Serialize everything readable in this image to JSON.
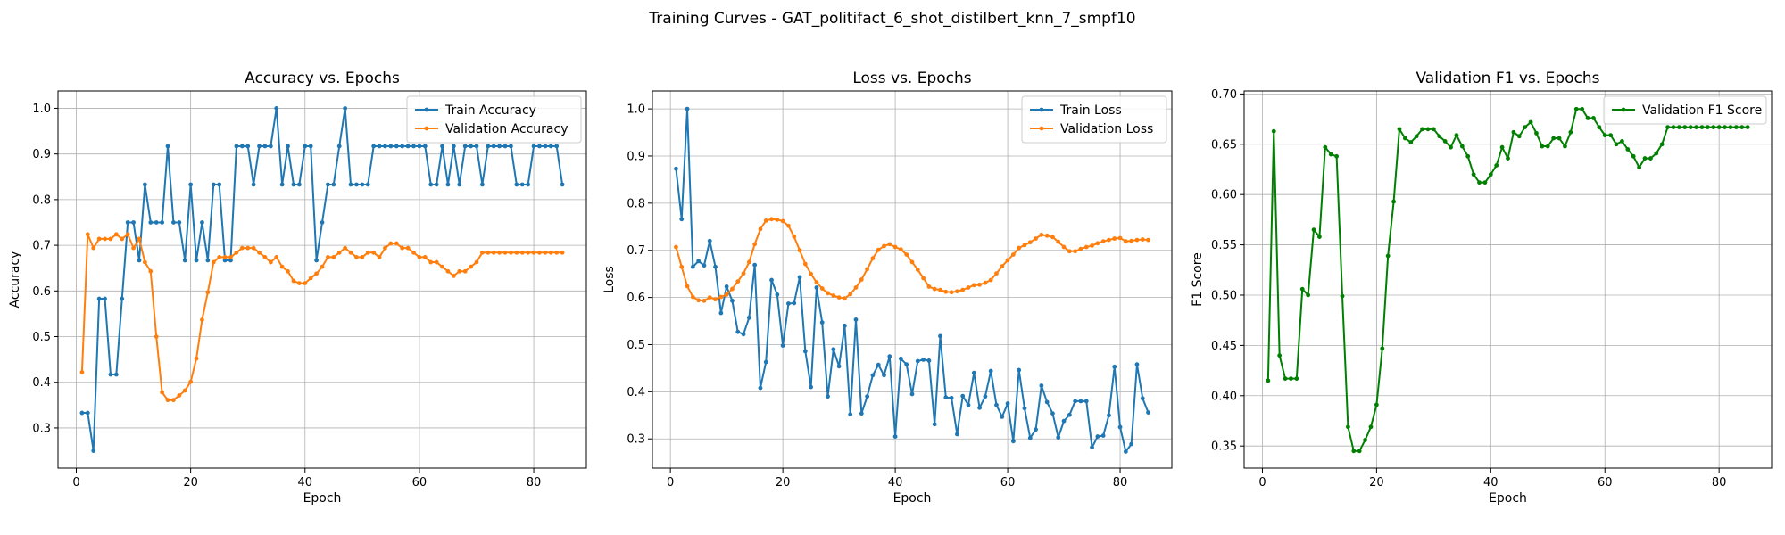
{
  "suptitle": "Training Curves - GAT_politifact_6_shot_distilbert_knn_7_smpf10",
  "chart_data": [
    {
      "type": "line",
      "title": "Accuracy vs. Epochs",
      "xlabel": "Epoch",
      "ylabel": "Accuracy",
      "xlim": [
        -3.2,
        89.2
      ],
      "ylim": [
        0.212,
        1.038
      ],
      "xticks": [
        0,
        20,
        40,
        60,
        80
      ],
      "yticks": [
        0.3,
        0.4,
        0.5,
        0.6,
        0.7,
        0.8,
        0.9,
        1.0
      ],
      "ytick_labels": [
        "0.3",
        "0.4",
        "0.5",
        "0.6",
        "0.7",
        "0.8",
        "0.9",
        "1.0"
      ],
      "grid": true,
      "legend_position": "upper right",
      "x": [
        1,
        2,
        3,
        4,
        5,
        6,
        7,
        8,
        9,
        10,
        11,
        12,
        13,
        14,
        15,
        16,
        17,
        18,
        19,
        20,
        21,
        22,
        23,
        24,
        25,
        26,
        27,
        28,
        29,
        30,
        31,
        32,
        33,
        34,
        35,
        36,
        37,
        38,
        39,
        40,
        41,
        42,
        43,
        44,
        45,
        46,
        47,
        48,
        49,
        50,
        51,
        52,
        53,
        54,
        55,
        56,
        57,
        58,
        59,
        60,
        61,
        62,
        63,
        64,
        65,
        66,
        67,
        68,
        69,
        70,
        71,
        72,
        73,
        74,
        75,
        76,
        77,
        78,
        79,
        80,
        81,
        82,
        83,
        84,
        85
      ],
      "series": [
        {
          "name": "Train Accuracy",
          "color": "#1f77b4",
          "values": [
            0.333,
            0.333,
            0.25,
            0.583,
            0.583,
            0.417,
            0.417,
            0.583,
            0.75,
            0.75,
            0.667,
            0.833,
            0.75,
            0.75,
            0.75,
            0.917,
            0.75,
            0.75,
            0.667,
            0.833,
            0.667,
            0.75,
            0.667,
            0.833,
            0.833,
            0.667,
            0.667,
            0.917,
            0.917,
            0.917,
            0.833,
            0.917,
            0.917,
            0.917,
            1.0,
            0.833,
            0.917,
            0.833,
            0.833,
            0.917,
            0.917,
            0.667,
            0.75,
            0.833,
            0.833,
            0.917,
            1.0,
            0.833,
            0.833,
            0.833,
            0.833,
            0.917,
            0.917,
            0.917,
            0.917,
            0.917,
            0.917,
            0.917,
            0.917,
            0.917,
            0.917,
            0.833,
            0.833,
            0.917,
            0.833,
            0.917,
            0.833,
            0.917,
            0.917,
            0.917,
            0.833,
            0.917,
            0.917,
            0.917,
            0.917,
            0.917,
            0.833,
            0.833,
            0.833,
            0.917,
            0.917,
            0.917,
            0.917,
            0.917,
            0.833
          ]
        },
        {
          "name": "Validation Accuracy",
          "color": "#ff7f0e",
          "values": [
            0.422,
            0.724,
            0.694,
            0.714,
            0.714,
            0.714,
            0.724,
            0.714,
            0.724,
            0.694,
            0.714,
            0.663,
            0.643,
            0.5,
            0.378,
            0.361,
            0.361,
            0.371,
            0.382,
            0.401,
            0.452,
            0.537,
            0.597,
            0.663,
            0.674,
            0.674,
            0.674,
            0.684,
            0.694,
            0.694,
            0.694,
            0.684,
            0.674,
            0.663,
            0.674,
            0.653,
            0.643,
            0.622,
            0.617,
            0.617,
            0.628,
            0.638,
            0.653,
            0.674,
            0.674,
            0.684,
            0.694,
            0.684,
            0.674,
            0.674,
            0.684,
            0.684,
            0.674,
            0.694,
            0.704,
            0.704,
            0.694,
            0.694,
            0.684,
            0.674,
            0.674,
            0.663,
            0.663,
            0.653,
            0.643,
            0.633,
            0.643,
            0.643,
            0.653,
            0.663,
            0.684,
            0.684,
            0.684,
            0.684,
            0.684,
            0.684,
            0.684,
            0.684,
            0.684,
            0.684,
            0.684,
            0.684,
            0.684,
            0.684,
            0.684
          ]
        }
      ]
    },
    {
      "type": "line",
      "title": "Loss vs. Epochs",
      "xlabel": "Epoch",
      "ylabel": "Loss",
      "xlim": [
        -3.2,
        89.2
      ],
      "ylim": [
        0.238,
        1.038
      ],
      "xticks": [
        0,
        20,
        40,
        60,
        80
      ],
      "yticks": [
        0.3,
        0.4,
        0.5,
        0.6,
        0.7,
        0.8,
        0.9,
        1.0
      ],
      "ytick_labels": [
        "0.3",
        "0.4",
        "0.5",
        "0.6",
        "0.7",
        "0.8",
        "0.9",
        "1.0"
      ],
      "grid": true,
      "legend_position": "upper right",
      "x": [
        1,
        2,
        3,
        4,
        5,
        6,
        7,
        8,
        9,
        10,
        11,
        12,
        13,
        14,
        15,
        16,
        17,
        18,
        19,
        20,
        21,
        22,
        23,
        24,
        25,
        26,
        27,
        28,
        29,
        30,
        31,
        32,
        33,
        34,
        35,
        36,
        37,
        38,
        39,
        40,
        41,
        42,
        43,
        44,
        45,
        46,
        47,
        48,
        49,
        50,
        51,
        52,
        53,
        54,
        55,
        56,
        57,
        58,
        59,
        60,
        61,
        62,
        63,
        64,
        65,
        66,
        67,
        68,
        69,
        70,
        71,
        72,
        73,
        74,
        75,
        76,
        77,
        78,
        79,
        80,
        81,
        82,
        83,
        84,
        85
      ],
      "series": [
        {
          "name": "Train Loss",
          "color": "#1f77b4",
          "values": [
            0.873,
            0.766,
            1.0,
            0.665,
            0.677,
            0.668,
            0.72,
            0.665,
            0.567,
            0.623,
            0.593,
            0.527,
            0.522,
            0.557,
            0.669,
            0.408,
            0.463,
            0.637,
            0.606,
            0.498,
            0.587,
            0.588,
            0.643,
            0.486,
            0.41,
            0.621,
            0.547,
            0.39,
            0.49,
            0.454,
            0.54,
            0.352,
            0.553,
            0.354,
            0.39,
            0.435,
            0.457,
            0.435,
            0.475,
            0.305,
            0.47,
            0.458,
            0.395,
            0.465,
            0.468,
            0.466,
            0.331,
            0.518,
            0.388,
            0.387,
            0.31,
            0.391,
            0.372,
            0.44,
            0.366,
            0.39,
            0.444,
            0.372,
            0.347,
            0.375,
            0.295,
            0.446,
            0.365,
            0.302,
            0.32,
            0.413,
            0.378,
            0.354,
            0.303,
            0.338,
            0.351,
            0.38,
            0.38,
            0.38,
            0.282,
            0.305,
            0.307,
            0.35,
            0.453,
            0.325,
            0.273,
            0.289,
            0.458,
            0.386,
            0.356
          ]
        },
        {
          "name": "Validation Loss",
          "color": "#ff7f0e",
          "values": [
            0.707,
            0.665,
            0.624,
            0.601,
            0.594,
            0.593,
            0.6,
            0.596,
            0.601,
            0.606,
            0.618,
            0.634,
            0.651,
            0.675,
            0.713,
            0.745,
            0.763,
            0.766,
            0.765,
            0.762,
            0.752,
            0.729,
            0.7,
            0.671,
            0.65,
            0.632,
            0.619,
            0.609,
            0.604,
            0.6,
            0.598,
            0.607,
            0.621,
            0.638,
            0.66,
            0.683,
            0.701,
            0.709,
            0.713,
            0.707,
            0.702,
            0.691,
            0.675,
            0.659,
            0.641,
            0.623,
            0.618,
            0.616,
            0.612,
            0.611,
            0.613,
            0.616,
            0.621,
            0.626,
            0.627,
            0.631,
            0.637,
            0.651,
            0.666,
            0.679,
            0.691,
            0.705,
            0.711,
            0.717,
            0.725,
            0.733,
            0.731,
            0.728,
            0.718,
            0.707,
            0.698,
            0.698,
            0.703,
            0.707,
            0.71,
            0.715,
            0.719,
            0.722,
            0.725,
            0.726,
            0.719,
            0.72,
            0.722,
            0.723,
            0.722
          ]
        }
      ]
    },
    {
      "type": "line",
      "title": "Validation F1 vs. Epochs",
      "xlabel": "Epoch",
      "ylabel": "F1 Score",
      "xlim": [
        -3.2,
        89.2
      ],
      "ylim": [
        0.328,
        0.703
      ],
      "xticks": [
        0,
        20,
        40,
        60,
        80
      ],
      "yticks": [
        0.35,
        0.4,
        0.45,
        0.5,
        0.55,
        0.6,
        0.65,
        0.7
      ],
      "ytick_labels": [
        "0.35",
        "0.40",
        "0.45",
        "0.50",
        "0.55",
        "0.60",
        "0.65",
        "0.70"
      ],
      "grid": true,
      "legend_position": "upper right",
      "x": [
        1,
        2,
        3,
        4,
        5,
        6,
        7,
        8,
        9,
        10,
        11,
        12,
        13,
        14,
        15,
        16,
        17,
        18,
        19,
        20,
        21,
        22,
        23,
        24,
        25,
        26,
        27,
        28,
        29,
        30,
        31,
        32,
        33,
        34,
        35,
        36,
        37,
        38,
        39,
        40,
        41,
        42,
        43,
        44,
        45,
        46,
        47,
        48,
        49,
        50,
        51,
        52,
        53,
        54,
        55,
        56,
        57,
        58,
        59,
        60,
        61,
        62,
        63,
        64,
        65,
        66,
        67,
        68,
        69,
        70,
        71,
        72,
        73,
        74,
        75,
        76,
        77,
        78,
        79,
        80,
        81,
        82,
        83,
        84,
        85
      ],
      "series": [
        {
          "name": "Validation F1 Score",
          "color": "#008000",
          "values": [
            0.415,
            0.663,
            0.44,
            0.417,
            0.417,
            0.417,
            0.506,
            0.5,
            0.565,
            0.558,
            0.647,
            0.64,
            0.638,
            0.499,
            0.369,
            0.345,
            0.345,
            0.356,
            0.369,
            0.391,
            0.447,
            0.539,
            0.593,
            0.665,
            0.656,
            0.652,
            0.658,
            0.665,
            0.665,
            0.665,
            0.658,
            0.653,
            0.647,
            0.659,
            0.648,
            0.638,
            0.62,
            0.612,
            0.612,
            0.62,
            0.629,
            0.647,
            0.636,
            0.662,
            0.658,
            0.667,
            0.672,
            0.661,
            0.648,
            0.648,
            0.656,
            0.656,
            0.648,
            0.662,
            0.685,
            0.685,
            0.676,
            0.676,
            0.667,
            0.659,
            0.659,
            0.65,
            0.653,
            0.645,
            0.638,
            0.627,
            0.636,
            0.636,
            0.641,
            0.65,
            0.667,
            0.667,
            0.667,
            0.667,
            0.667,
            0.667,
            0.667,
            0.667,
            0.667,
            0.667,
            0.667,
            0.667,
            0.667,
            0.667,
            0.667
          ]
        }
      ]
    }
  ]
}
